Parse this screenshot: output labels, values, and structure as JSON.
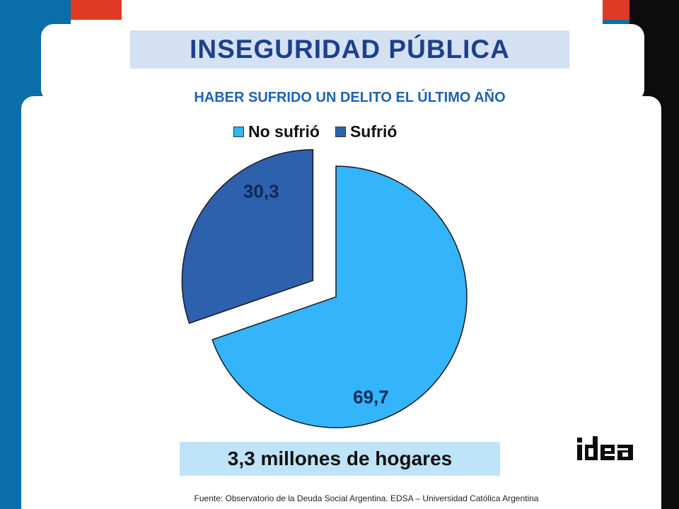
{
  "slide": {
    "title": "INSEGURIDAD PÚBLICA",
    "banner": "3,3 millones de hogares",
    "source": "Fuente:  Observatorio de  la Deuda Social Argentina. EDSA  – Universidad Católica Argentina",
    "logo_text": "idea"
  },
  "colors": {
    "no_sufrio": "#33b4fb",
    "sufrio": "#2e61ad",
    "title": "#1f3f88",
    "subtitle": "#1e63b4",
    "brand_red": "#e03a25",
    "brand_blue": "#0a6ea8"
  },
  "chart_data": {
    "type": "pie",
    "title": "HABER SUFRIDO UN DELITO EL ÚLTIMO AÑO",
    "legend_position": "top",
    "categories": [
      "No sufrió",
      "Sufrió"
    ],
    "values": [
      69.7,
      30.3
    ],
    "value_labels": [
      "69,7",
      "30,3"
    ],
    "exploded": [
      "Sufrió"
    ]
  }
}
